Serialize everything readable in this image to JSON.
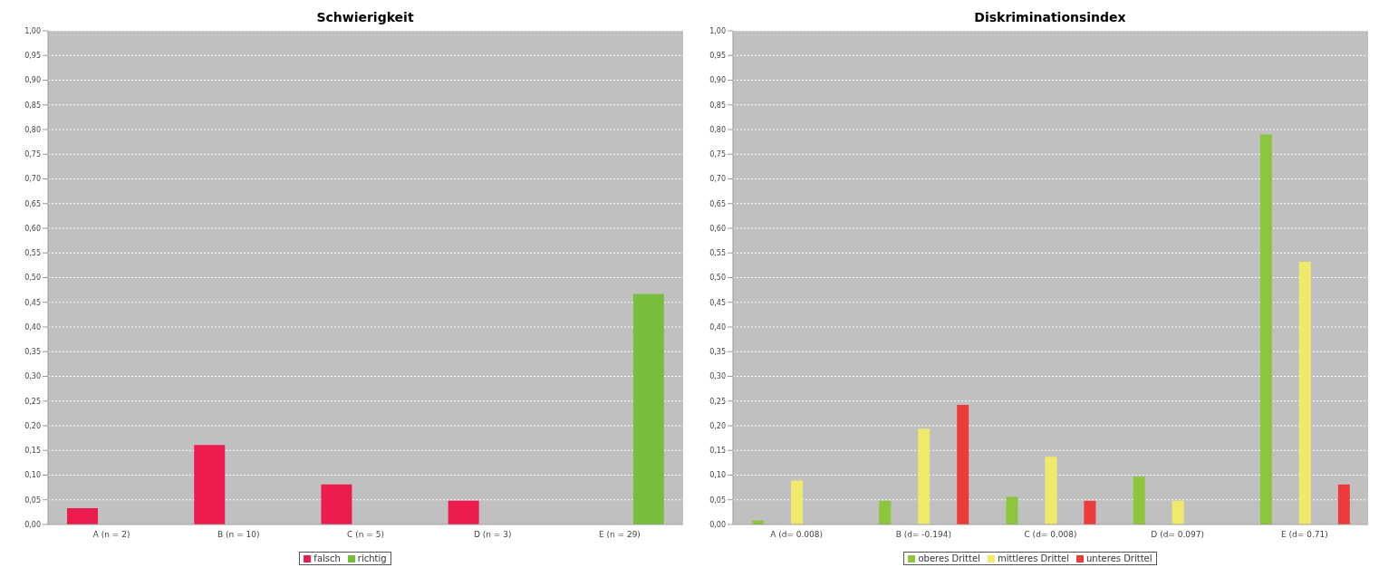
{
  "chart_data": [
    {
      "type": "bar",
      "title": "Schwierigkeit",
      "categories": [
        "A (n = 2)",
        "B (n = 10)",
        "C (n = 5)",
        "D (n = 3)",
        "E (n = 29)"
      ],
      "series": [
        {
          "name": "falsch",
          "color": "#ec1c4e",
          "values": [
            0.033,
            0.161,
            0.081,
            0.048,
            null
          ]
        },
        {
          "name": "richtig",
          "color": "#78be3c",
          "values": [
            null,
            null,
            null,
            null,
            0.467
          ]
        }
      ],
      "ylim": [
        0,
        1
      ],
      "yticks": [
        {
          "value": 0,
          "label": "0,00"
        },
        {
          "value": 0.05,
          "label": "0,05"
        },
        {
          "value": 0.1,
          "label": "0,10"
        },
        {
          "value": 0.15,
          "label": "0,15"
        },
        {
          "value": 0.2,
          "label": "0,20"
        },
        {
          "value": 0.25,
          "label": "0,25"
        },
        {
          "value": 0.3,
          "label": "0,30"
        },
        {
          "value": 0.35,
          "label": "0,35"
        },
        {
          "value": 0.4,
          "label": "0,40"
        },
        {
          "value": 0.45,
          "label": "0,45"
        },
        {
          "value": 0.5,
          "label": "0,50"
        },
        {
          "value": 0.55,
          "label": "0,55"
        },
        {
          "value": 0.6,
          "label": "0,60"
        },
        {
          "value": 0.65,
          "label": "0,65"
        },
        {
          "value": 0.7,
          "label": "0,70"
        },
        {
          "value": 0.75,
          "label": "0,75"
        },
        {
          "value": 0.8,
          "label": "0,80"
        },
        {
          "value": 0.85,
          "label": "0,85"
        },
        {
          "value": 0.9,
          "label": "0,90"
        },
        {
          "value": 0.95,
          "label": "0,95"
        },
        {
          "value": 1,
          "label": "1,00"
        }
      ],
      "grid": "y",
      "legend": "bottom"
    },
    {
      "type": "bar",
      "title": "Diskriminationsindex",
      "categories": [
        "A (d= 0.008)",
        "B (d= -0.194)",
        "C (d= 0.008)",
        "D (d= 0.097)",
        "E (d= 0.71)"
      ],
      "series": [
        {
          "name": "oberes Drittel",
          "color": "#8cc63c",
          "values": [
            0.008,
            0.048,
            0.056,
            0.097,
            0.79
          ]
        },
        {
          "name": "mittleres Drittel",
          "color": "#f0ea6a",
          "values": [
            0.089,
            0.194,
            0.137,
            0.048,
            0.532
          ]
        },
        {
          "name": "unteres Drittel",
          "color": "#ee3a3a",
          "values": [
            null,
            0.242,
            0.048,
            null,
            0.081
          ]
        }
      ],
      "ylim": [
        0,
        1
      ],
      "yticks": [
        {
          "value": 0,
          "label": "0,00"
        },
        {
          "value": 0.05,
          "label": "0,05"
        },
        {
          "value": 0.1,
          "label": "0,10"
        },
        {
          "value": 0.15,
          "label": "0,15"
        },
        {
          "value": 0.2,
          "label": "0,20"
        },
        {
          "value": 0.25,
          "label": "0,25"
        },
        {
          "value": 0.3,
          "label": "0,30"
        },
        {
          "value": 0.35,
          "label": "0,35"
        },
        {
          "value": 0.4,
          "label": "0,40"
        },
        {
          "value": 0.45,
          "label": "0,45"
        },
        {
          "value": 0.5,
          "label": "0,50"
        },
        {
          "value": 0.55,
          "label": "0,55"
        },
        {
          "value": 0.6,
          "label": "0,60"
        },
        {
          "value": 0.65,
          "label": "0,65"
        },
        {
          "value": 0.7,
          "label": "0,70"
        },
        {
          "value": 0.75,
          "label": "0,75"
        },
        {
          "value": 0.8,
          "label": "0,80"
        },
        {
          "value": 0.85,
          "label": "0,85"
        },
        {
          "value": 0.9,
          "label": "0,90"
        },
        {
          "value": 0.95,
          "label": "0,95"
        },
        {
          "value": 1,
          "label": "1,00"
        }
      ],
      "grid": "y",
      "legend": "bottom"
    }
  ]
}
